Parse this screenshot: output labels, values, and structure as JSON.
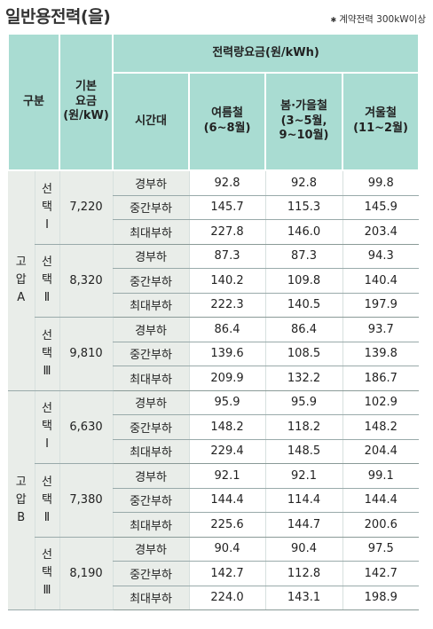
{
  "title": "일반용전력(을)",
  "note": "계약전력 300kW이상",
  "header": {
    "category": "구분",
    "base_rate": [
      "기본",
      "요금",
      "(원/kW)"
    ],
    "energy_rate": "전력량요금(원/kWh)",
    "time": "시간대",
    "summer": [
      "여름철",
      "(6~8월)"
    ],
    "spring_fall": [
      "봄·가을철",
      "(3~5월,",
      "9~10월)"
    ],
    "winter": [
      "겨울철",
      "(11~2월)"
    ]
  },
  "groups": [
    {
      "name": [
        "고",
        "압",
        "A"
      ],
      "options": [
        {
          "label": [
            "선",
            "택",
            "Ⅰ"
          ],
          "base": "7,220",
          "rows": [
            {
              "time": "경부하",
              "summer": "92.8",
              "spring_fall": "92.8",
              "winter": "99.8"
            },
            {
              "time": "중간부하",
              "summer": "145.7",
              "spring_fall": "115.3",
              "winter": "145.9"
            },
            {
              "time": "최대부하",
              "summer": "227.8",
              "spring_fall": "146.0",
              "winter": "203.4"
            }
          ]
        },
        {
          "label": [
            "선",
            "택",
            "Ⅱ"
          ],
          "base": "8,320",
          "rows": [
            {
              "time": "경부하",
              "summer": "87.3",
              "spring_fall": "87.3",
              "winter": "94.3"
            },
            {
              "time": "중간부하",
              "summer": "140.2",
              "spring_fall": "109.8",
              "winter": "140.4"
            },
            {
              "time": "최대부하",
              "summer": "222.3",
              "spring_fall": "140.5",
              "winter": "197.9"
            }
          ]
        },
        {
          "label": [
            "선",
            "택",
            "Ⅲ"
          ],
          "base": "9,810",
          "rows": [
            {
              "time": "경부하",
              "summer": "86.4",
              "spring_fall": "86.4",
              "winter": "93.7"
            },
            {
              "time": "중간부하",
              "summer": "139.6",
              "spring_fall": "108.5",
              "winter": "139.8"
            },
            {
              "time": "최대부하",
              "summer": "209.9",
              "spring_fall": "132.2",
              "winter": "186.7"
            }
          ]
        }
      ]
    },
    {
      "name": [
        "고",
        "압",
        "B"
      ],
      "options": [
        {
          "label": [
            "선",
            "택",
            "Ⅰ"
          ],
          "base": "6,630",
          "rows": [
            {
              "time": "경부하",
              "summer": "95.9",
              "spring_fall": "95.9",
              "winter": "102.9"
            },
            {
              "time": "중간부하",
              "summer": "148.2",
              "spring_fall": "118.2",
              "winter": "148.2"
            },
            {
              "time": "최대부하",
              "summer": "229.4",
              "spring_fall": "148.5",
              "winter": "204.4"
            }
          ]
        },
        {
          "label": [
            "선",
            "택",
            "Ⅱ"
          ],
          "base": "7,380",
          "rows": [
            {
              "time": "경부하",
              "summer": "92.1",
              "spring_fall": "92.1",
              "winter": "99.1"
            },
            {
              "time": "중간부하",
              "summer": "144.4",
              "spring_fall": "114.4",
              "winter": "144.4"
            },
            {
              "time": "최대부하",
              "summer": "225.6",
              "spring_fall": "144.7",
              "winter": "200.6"
            }
          ]
        },
        {
          "label": [
            "선",
            "택",
            "Ⅲ"
          ],
          "base": "8,190",
          "rows": [
            {
              "time": "경부하",
              "summer": "90.4",
              "spring_fall": "90.4",
              "winter": "97.5"
            },
            {
              "time": "중간부하",
              "summer": "142.7",
              "spring_fall": "112.8",
              "winter": "142.7"
            },
            {
              "time": "최대부하",
              "summer": "224.0",
              "spring_fall": "143.1",
              "winter": "198.9"
            }
          ]
        }
      ]
    }
  ]
}
